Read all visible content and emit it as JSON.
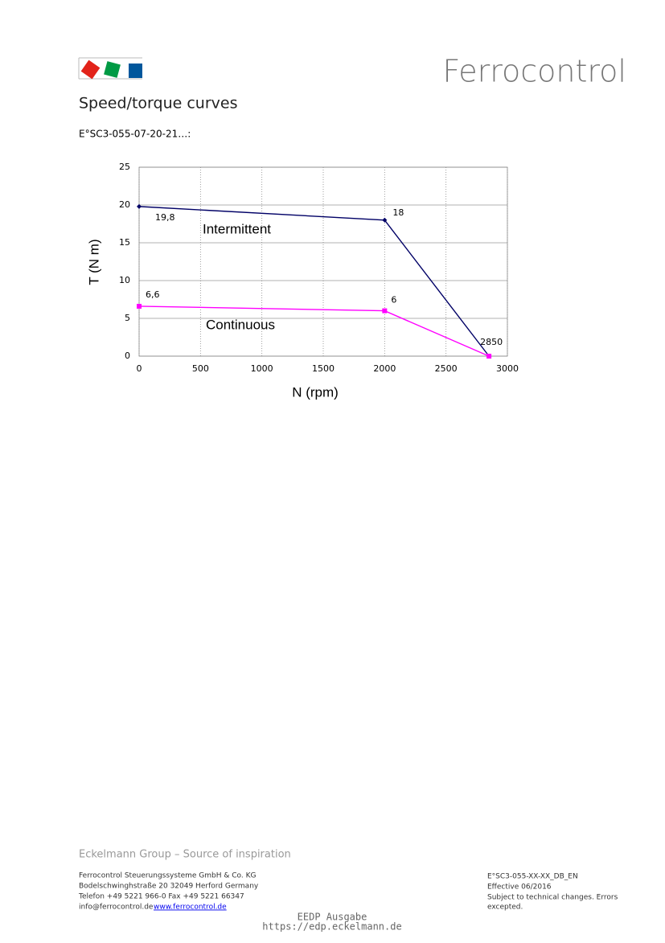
{
  "header": {
    "brand": "Ferrocontrol",
    "title": "Speed/torque curves",
    "subtitle": "E°SC3-055-07-20-21…:"
  },
  "chart_data": {
    "type": "line",
    "x_label": "N (rpm)",
    "y_label": "T (N m)",
    "x": [
      0,
      2000,
      2850
    ],
    "x_point_label": "2850",
    "series": [
      {
        "name": "Intermittent",
        "color": "#000066",
        "values": [
          19.8,
          18,
          0
        ],
        "value_labels": [
          "19,8",
          "18",
          null
        ],
        "marker": "diamond"
      },
      {
        "name": "Continuous",
        "color": "#ff00ff",
        "values": [
          6.6,
          6,
          0
        ],
        "value_labels": [
          "6,6",
          "6",
          null
        ],
        "marker": "square"
      }
    ],
    "xlim": [
      0,
      3000
    ],
    "xticks": [
      0,
      500,
      1000,
      1500,
      2000,
      2500,
      3000
    ],
    "ylim": [
      0,
      25
    ],
    "yticks": [
      0,
      5,
      10,
      15,
      20,
      25
    ],
    "grid": true
  },
  "footer": {
    "tagline": "Eckelmann Group – Source of inspiration",
    "left": [
      "Ferrocontrol Steuerungssysteme GmbH & Co. KG",
      "Bodelschwinghstraße 20   32049 Herford   Germany",
      "Telefon +49 5221 966-0   Fax +49 5221 66347"
    ],
    "email": "info@ferrocontrol.de",
    "web": "www.ferrocontrol.de",
    "right": [
      "E°SC3-055-XX-XX_DB_EN",
      "Effective 06/2016",
      "Subject to technical changes. Errors",
      "excepted."
    ],
    "stamp": [
      "EEDP Ausgabe",
      "https://edp.eckelmann.de"
    ]
  }
}
